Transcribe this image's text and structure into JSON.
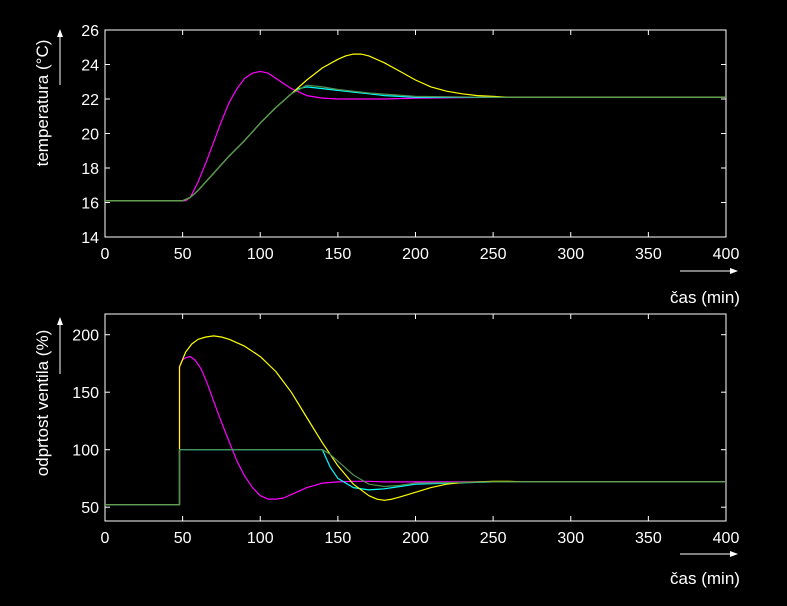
{
  "chart_data": [
    {
      "type": "line",
      "xlabel": "čas (min)",
      "ylabel": "temperatura (°C)",
      "xlim": [
        0,
        400
      ],
      "ylim": [
        14,
        26
      ],
      "xticks": [
        0,
        50,
        100,
        150,
        200,
        250,
        300,
        350,
        400
      ],
      "yticks": [
        14,
        16,
        18,
        20,
        22,
        24,
        26
      ],
      "grid": false,
      "series": [
        {
          "color": "#ff00ff",
          "x": [
            0,
            50,
            52,
            55,
            60,
            65,
            70,
            75,
            80,
            85,
            90,
            95,
            100,
            105,
            110,
            115,
            120,
            125,
            130,
            140,
            150,
            160,
            170,
            180,
            200,
            250,
            300,
            400
          ],
          "y": [
            16.1,
            16.1,
            16.1,
            16.3,
            17.2,
            18.3,
            19.5,
            20.7,
            21.8,
            22.6,
            23.2,
            23.5,
            23.6,
            23.5,
            23.2,
            22.9,
            22.6,
            22.4,
            22.2,
            22.05,
            22.0,
            22.0,
            22.0,
            22.0,
            22.05,
            22.1,
            22.1,
            22.1
          ]
        },
        {
          "color": "#00ffff",
          "x": [
            0,
            50,
            55,
            60,
            70,
            80,
            90,
            100,
            110,
            120,
            125,
            130,
            140,
            150,
            160,
            170,
            180,
            190,
            200,
            250,
            300,
            400
          ],
          "y": [
            16.1,
            16.1,
            16.3,
            16.7,
            17.7,
            18.7,
            19.6,
            20.6,
            21.5,
            22.3,
            22.6,
            22.7,
            22.6,
            22.5,
            22.4,
            22.3,
            22.2,
            22.15,
            22.1,
            22.1,
            22.1,
            22.1
          ]
        },
        {
          "color": "#ffff00",
          "x": [
            0,
            50,
            55,
            60,
            70,
            80,
            90,
            100,
            110,
            120,
            130,
            140,
            150,
            155,
            160,
            165,
            170,
            180,
            190,
            200,
            210,
            220,
            230,
            240,
            250,
            260,
            280,
            300,
            400
          ],
          "y": [
            16.1,
            16.1,
            16.3,
            16.7,
            17.7,
            18.7,
            19.6,
            20.6,
            21.5,
            22.3,
            23.1,
            23.8,
            24.3,
            24.5,
            24.6,
            24.6,
            24.5,
            24.1,
            23.6,
            23.1,
            22.7,
            22.45,
            22.3,
            22.2,
            22.15,
            22.1,
            22.1,
            22.1,
            22.1
          ]
        },
        {
          "color": "#4f8f4f",
          "x": [
            0,
            50,
            55,
            60,
            70,
            80,
            90,
            100,
            110,
            120,
            130,
            140,
            150,
            170,
            200,
            250,
            300,
            400
          ],
          "y": [
            16.1,
            16.1,
            16.3,
            16.7,
            17.7,
            18.7,
            19.6,
            20.6,
            21.5,
            22.3,
            22.8,
            22.7,
            22.55,
            22.35,
            22.15,
            22.1,
            22.1,
            22.1
          ]
        }
      ]
    },
    {
      "type": "line",
      "xlabel": "čas (min)",
      "ylabel": "odprtost ventila (%)",
      "xlim": [
        0,
        400
      ],
      "ylim": [
        38,
        218
      ],
      "xticks": [
        0,
        50,
        100,
        150,
        200,
        250,
        300,
        350,
        400
      ],
      "yticks": [
        50,
        100,
        150,
        200
      ],
      "grid": false,
      "series": [
        {
          "color": "#ff00ff",
          "x": [
            0,
            48,
            48,
            50,
            52,
            55,
            58,
            62,
            66,
            70,
            75,
            80,
            85,
            90,
            95,
            100,
            105,
            110,
            115,
            120,
            125,
            130,
            135,
            140,
            150,
            160,
            170,
            180,
            200,
            250,
            300,
            400
          ],
          "y": [
            52,
            52,
            172,
            178,
            180,
            181,
            178,
            170,
            157,
            142,
            124,
            107,
            90,
            77,
            67,
            60,
            57,
            57,
            58,
            61,
            64,
            67,
            69,
            71,
            72,
            72.5,
            72.5,
            72,
            72,
            72,
            72,
            72
          ]
        },
        {
          "color": "#00ffff",
          "x": [
            0,
            48,
            48,
            100,
            140,
            145,
            150,
            160,
            170,
            180,
            190,
            200,
            250,
            300,
            400
          ],
          "y": [
            52,
            52,
            100,
            100,
            100,
            85,
            75,
            67,
            65,
            66,
            68,
            70,
            72,
            72,
            72
          ]
        },
        {
          "color": "#ffff00",
          "x": [
            0,
            48,
            48,
            52,
            56,
            60,
            65,
            70,
            75,
            80,
            90,
            100,
            110,
            120,
            130,
            140,
            150,
            160,
            170,
            175,
            180,
            185,
            190,
            200,
            210,
            220,
            230,
            240,
            250,
            260,
            270,
            300,
            400
          ],
          "y": [
            52,
            52,
            172,
            185,
            192,
            196,
            198,
            199,
            198,
            196,
            190,
            181,
            168,
            150,
            128,
            106,
            86,
            70,
            60,
            57,
            56,
            57,
            59,
            63,
            67,
            70,
            71.5,
            72,
            72.5,
            72.5,
            72,
            72,
            72
          ]
        },
        {
          "color": "#4f8f4f",
          "x": [
            0,
            48,
            48,
            100,
            140,
            145,
            150,
            160,
            170,
            180,
            190,
            200,
            250,
            300,
            400
          ],
          "y": [
            52,
            52,
            100,
            100,
            100,
            96,
            90,
            78,
            70,
            68,
            69,
            71,
            72,
            72,
            72
          ]
        }
      ]
    }
  ]
}
